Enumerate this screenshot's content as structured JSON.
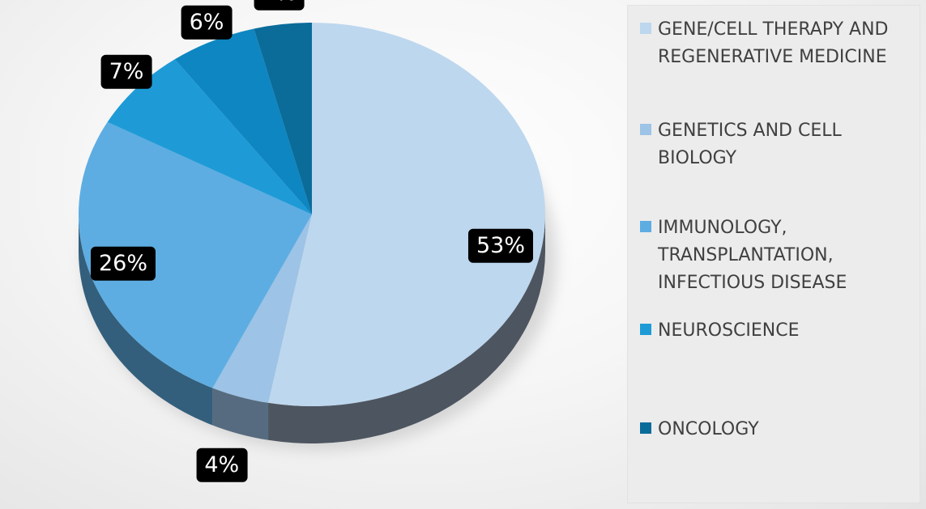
{
  "chart_data": {
    "type": "pie",
    "title": "",
    "style": "3d",
    "legend_position": "right",
    "slices": [
      {
        "label": "GENE/CELL THERAPY AND\nREGENERATIVE MEDICINE",
        "value": 53,
        "value_label": "53%",
        "color": "#bdd7ee"
      },
      {
        "label": "GENETICS AND CELL\nBIOLOGY",
        "value": 4,
        "value_label": "4%",
        "color": "#9dc3e6"
      },
      {
        "label": "IMMUNOLOGY,\nTRANSPLANTATION,\nINFECTIOUS DISEASE",
        "value": 26,
        "value_label": "26%",
        "color": "#5dade2"
      },
      {
        "label": "NEUROSCIENCE",
        "value": 7,
        "value_label": "7%",
        "color": "#1e9bd7"
      },
      {
        "label": "",
        "value": 6,
        "value_label": "6%",
        "color": "#0e86c2"
      },
      {
        "label": "ONCOLOGY",
        "value": 4,
        "value_label": "4%",
        "color": "#0b6c9a"
      }
    ]
  }
}
